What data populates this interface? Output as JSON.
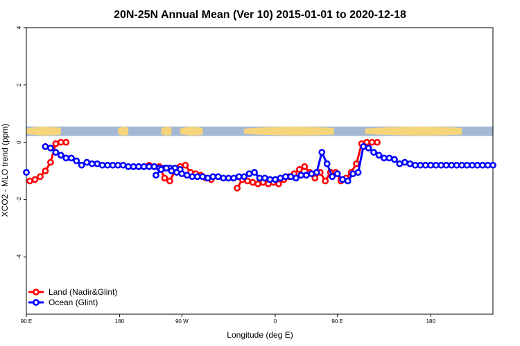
{
  "chart_data": {
    "type": "line",
    "title": "20N-25N Annual Mean (Ver 10)   2015-01-01 to 2020-12-18",
    "xlabel": "Longitude (deg E)",
    "ylabel": "XCO2 - MLO trend (ppm)",
    "xlim": [
      -90,
      180
    ],
    "ylim": [
      -6,
      4
    ],
    "x_ticks": [
      -90,
      -36,
      0,
      54,
      90,
      144
    ],
    "x_tick_labels": [
      "90 E",
      "180",
      "90 W",
      "0",
      "90 E",
      "180"
    ],
    "y_ticks": [
      4,
      2,
      0,
      -2,
      -4
    ],
    "y_tick_labels": [
      "4",
      "2",
      "0",
      "-2",
      "-4"
    ],
    "grid": false,
    "legend_position": "bottom-left",
    "map_strip": {
      "ocean_color": "#a4b8d4",
      "land_color": "#f5d47a"
    },
    "series": [
      {
        "name": "Land (Nadir&Glint)",
        "color": "#ff0000",
        "x": [
          -88,
          -85,
          -82,
          -79,
          -76,
          -73,
          -70,
          -67,
          -19,
          -16,
          -13,
          -10,
          -7,
          -4,
          -1,
          2,
          5,
          8,
          11,
          14,
          17,
          32,
          35,
          38,
          41,
          44,
          47,
          50,
          53,
          56,
          59,
          62,
          65,
          68,
          71,
          74,
          77,
          80,
          83,
          86,
          89,
          92,
          95,
          98,
          101,
          104,
          107,
          110,
          113
        ],
        "y": [
          -1.35,
          -1.3,
          -1.2,
          -1.0,
          -0.7,
          -0.05,
          0.0,
          0.0,
          -0.8,
          -0.85,
          -0.85,
          -1.25,
          -1.35,
          -1.0,
          -0.85,
          -0.8,
          -1.05,
          -1.1,
          -1.15,
          -1.25,
          -1.3,
          -1.6,
          -1.3,
          -1.35,
          -1.4,
          -1.45,
          -1.4,
          -1.45,
          -1.4,
          -1.45,
          -1.3,
          -1.2,
          -1.1,
          -0.95,
          -0.85,
          -1.05,
          -1.25,
          -1.05,
          -1.35,
          -1.05,
          -1.05,
          -1.35,
          -1.25,
          -1.05,
          -0.75,
          -0.05,
          0.0,
          0.0,
          0.0
        ]
      },
      {
        "name": "Ocean (Glint)",
        "color": "#0000ff",
        "x": [
          -90,
          -79,
          -76,
          -73,
          -70,
          -67,
          -64,
          -61,
          -58,
          -55,
          -52,
          -49,
          -46,
          -43,
          -40,
          -37,
          -34,
          -31,
          -28,
          -25,
          -22,
          -19,
          -16,
          -13,
          -10,
          -7,
          -4,
          -1,
          -15,
          -12,
          -9,
          -6,
          -3,
          0,
          3,
          6,
          9,
          12,
          15,
          18,
          21,
          24,
          27,
          30,
          33,
          36,
          39,
          42,
          45,
          48,
          51,
          54,
          57,
          60,
          63,
          66,
          69,
          72,
          75,
          78,
          81,
          84,
          87,
          90,
          93,
          96,
          99,
          102,
          105,
          108,
          111,
          114,
          117,
          120,
          123,
          126,
          129,
          132,
          135,
          138,
          141,
          144,
          147,
          150,
          153,
          156,
          159,
          162,
          165,
          168,
          171,
          174,
          177,
          180
        ],
        "y": [
          -1.05,
          -0.15,
          -0.2,
          -0.35,
          -0.45,
          -0.55,
          -0.55,
          -0.65,
          -0.8,
          -0.7,
          -0.75,
          -0.75,
          -0.8,
          -0.8,
          -0.8,
          -0.8,
          -0.8,
          -0.85,
          -0.85,
          -0.85,
          -0.85,
          -0.85,
          -0.85,
          -0.9,
          -0.9,
          -0.9,
          -0.9,
          -0.95,
          -1.15,
          -0.95,
          -0.9,
          -1.0,
          -1.05,
          -1.1,
          -1.15,
          -1.2,
          -1.2,
          -1.2,
          -1.25,
          -1.2,
          -1.2,
          -1.25,
          -1.25,
          -1.25,
          -1.2,
          -1.2,
          -1.1,
          -1.05,
          -1.25,
          -1.25,
          -1.3,
          -1.3,
          -1.25,
          -1.2,
          -1.2,
          -1.25,
          -1.15,
          -1.15,
          -1.1,
          -1.05,
          -0.35,
          -0.75,
          -1.2,
          -1.1,
          -1.3,
          -1.35,
          -1.1,
          -1.05,
          -0.15,
          -0.2,
          -0.35,
          -0.45,
          -0.55,
          -0.55,
          -0.6,
          -0.75,
          -0.7,
          -0.75,
          -0.8,
          -0.8,
          -0.8,
          -0.8,
          -0.8,
          -0.8,
          -0.8,
          -0.8,
          -0.8,
          -0.8,
          -0.8,
          -0.8,
          -0.8,
          -0.8,
          -0.8,
          -0.8
        ]
      }
    ]
  }
}
